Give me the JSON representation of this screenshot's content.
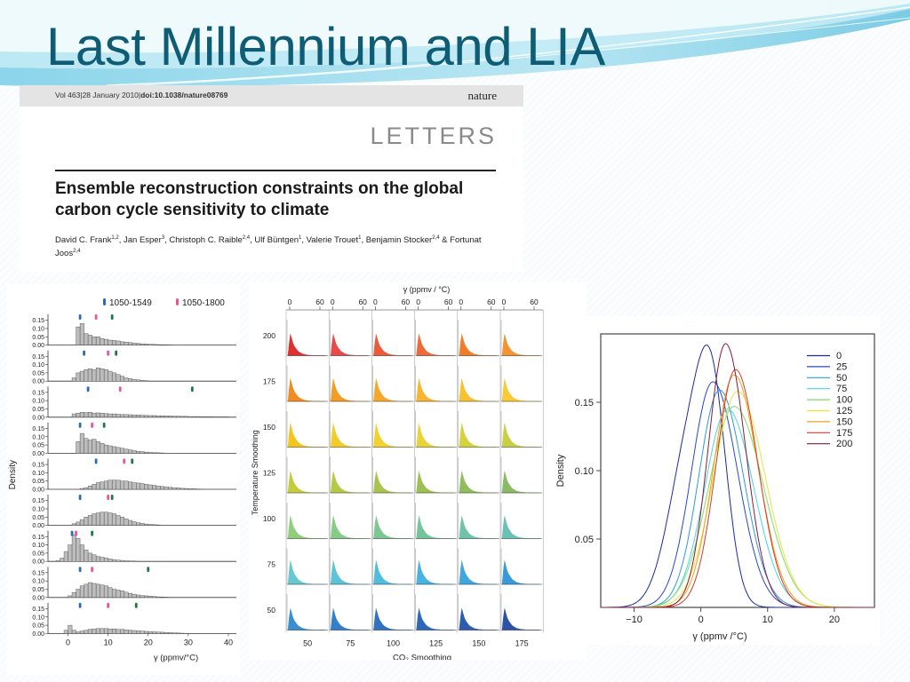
{
  "slide": {
    "title": "Last Millennium and LIA"
  },
  "paper": {
    "journal_info_prefix": "Vol 463|28 January 2010|",
    "journal_info_doi": "doi:10.1038/nature08769",
    "journal": "nature",
    "section": "LETTERS",
    "title": "Ensemble reconstruction constraints on the global carbon cycle sensitivity to climate",
    "authors": [
      {
        "name": "David C. Frank",
        "sup": "1,2"
      },
      {
        "name": "Jan Esper",
        "sup": "3"
      },
      {
        "name": "Christoph C. Raible",
        "sup": "2,4"
      },
      {
        "name": "Ulf Büntgen",
        "sup": "1"
      },
      {
        "name": "Valerie Trouet",
        "sup": "1"
      },
      {
        "name": "Benjamin Stocker",
        "sup": "2,4"
      },
      {
        "name": "Fortunat Joos",
        "sup": "2,4"
      }
    ]
  },
  "colors": {
    "title": "#0f5d75",
    "histogram_fill": "#bdbdbd",
    "marker_1050_1549": "#2b6cb0",
    "marker_1050_1800": "#e8559a",
    "marker_third": "#1b7a3e"
  },
  "chart_data": [
    {
      "type": "bar",
      "panel": "histograms",
      "legend": [
        "1050-1549",
        "1050-1800"
      ],
      "ylabel": "Density",
      "xlabel": "γ (ppmv/°C)",
      "xlim": [
        -5,
        42
      ],
      "xticks": [
        "0",
        "10",
        "20",
        "30",
        "40"
      ],
      "yticks": [
        "0.15",
        "0.10",
        "0.05",
        "0.00"
      ],
      "bin_width": 1,
      "rows": [
        {
          "bins_start": 2,
          "values": [
            0.11,
            0.13,
            0.07,
            0.06,
            0.05,
            0.05,
            0.04,
            0.035,
            0.03,
            0.028,
            0.025,
            0.02,
            0.018,
            0.015,
            0.012,
            0.01,
            0.008,
            0.006,
            0.005,
            0.004,
            0.003,
            0.002,
            0.002,
            0.001
          ],
          "markers": [
            3,
            7,
            11
          ]
        },
        {
          "bins_start": 1,
          "values": [
            0.02,
            0.05,
            0.06,
            0.07,
            0.075,
            0.07,
            0.08,
            0.075,
            0.07,
            0.06,
            0.05,
            0.04,
            0.03,
            0.02,
            0.015,
            0.01,
            0.008,
            0.005,
            0.003
          ],
          "markers": [
            4,
            10,
            12
          ]
        },
        {
          "bins_start": 1,
          "values": [
            0.02,
            0.025,
            0.03,
            0.028,
            0.03,
            0.025,
            0.026,
            0.024,
            0.022,
            0.02,
            0.02,
            0.018,
            0.016,
            0.016,
            0.015,
            0.014,
            0.013,
            0.012,
            0.011,
            0.01,
            0.01,
            0.009,
            0.008,
            0.008,
            0.007,
            0.006,
            0.006,
            0.005,
            0.005,
            0.004,
            0.004,
            0.004,
            0.003,
            0.003,
            0.003,
            0.002,
            0.002,
            0.002,
            0.002,
            0.001
          ],
          "markers": [
            5,
            13,
            31
          ]
        },
        {
          "bins_start": 2,
          "values": [
            0.07,
            0.12,
            0.09,
            0.08,
            0.085,
            0.07,
            0.06,
            0.05,
            0.045,
            0.04,
            0.035,
            0.03,
            0.025,
            0.02,
            0.016,
            0.012,
            0.01,
            0.007,
            0.005,
            0.004,
            0.003,
            0.002
          ],
          "markers": [
            3,
            6,
            9
          ]
        },
        {
          "bins_start": 3,
          "values": [
            0.005,
            0.01,
            0.02,
            0.03,
            0.04,
            0.045,
            0.05,
            0.055,
            0.055,
            0.055,
            0.05,
            0.05,
            0.045,
            0.04,
            0.038,
            0.035,
            0.03,
            0.027,
            0.024,
            0.02,
            0.017,
            0.014,
            0.012,
            0.01,
            0.008,
            0.006,
            0.005,
            0.004,
            0.003,
            0.002
          ],
          "markers": [
            7,
            14,
            16
          ]
        },
        {
          "bins_start": 1,
          "values": [
            0.01,
            0.02,
            0.035,
            0.05,
            0.06,
            0.07,
            0.075,
            0.08,
            0.08,
            0.075,
            0.07,
            0.06,
            0.05,
            0.04,
            0.03,
            0.022,
            0.016,
            0.012,
            0.008,
            0.006,
            0.004,
            0.003
          ],
          "markers": [
            3,
            10,
            11
          ]
        },
        {
          "bins_start": -3,
          "values": [
            0.005,
            0.02,
            0.06,
            0.1,
            0.16,
            0.14,
            0.1,
            0.07,
            0.05,
            0.04,
            0.03,
            0.025,
            0.02,
            0.015,
            0.01,
            0.008,
            0.006,
            0.004,
            0.003,
            0.002
          ],
          "markers": [
            1,
            2,
            6
          ]
        },
        {
          "bins_start": 0,
          "values": [
            0.01,
            0.03,
            0.05,
            0.07,
            0.08,
            0.09,
            0.085,
            0.08,
            0.075,
            0.07,
            0.06,
            0.05,
            0.045,
            0.04,
            0.032,
            0.025,
            0.02,
            0.015,
            0.012,
            0.01,
            0.008,
            0.006,
            0.004,
            0.003,
            0.002
          ],
          "markers": [
            3,
            6,
            20
          ]
        },
        {
          "bins_start": -1,
          "values": [
            0.02,
            0.05,
            0.02,
            0.01,
            0.015,
            0.02,
            0.025,
            0.028,
            0.03,
            0.03,
            0.03,
            0.028,
            0.028,
            0.025,
            0.025,
            0.022,
            0.02,
            0.018,
            0.016,
            0.015,
            0.013,
            0.012,
            0.01,
            0.009,
            0.008,
            0.006,
            0.005,
            0.004,
            0.003,
            0.002
          ],
          "markers": [
            3,
            10,
            17
          ]
        }
      ]
    },
    {
      "type": "area",
      "panel": "grid-histograms",
      "top_xlabel": "γ (ppmv / °C)",
      "top_xticks": [
        "0",
        "60"
      ],
      "xlabel": "CO₂ Smoothing",
      "ylabel": "Temperature Smoothing",
      "columns": [
        "50",
        "75",
        "100",
        "125",
        "150",
        "175"
      ],
      "rows": [
        "200",
        "175",
        "150",
        "125",
        "100",
        "75",
        "50"
      ],
      "row_colors": {
        "200": [
          "#e03131",
          "#e84a4a",
          "#ec5a3a",
          "#ef6a3a",
          "#f07d2a",
          "#f29431"
        ],
        "175": [
          "#f08c22",
          "#f39c26",
          "#f4a82c",
          "#f6b630",
          "#f7c232",
          "#f8cb36"
        ],
        "150": [
          "#f3c521",
          "#f4cc2a",
          "#f2d232",
          "#e8d43a",
          "#d6d23e",
          "#c8cf42"
        ],
        "125": [
          "#c4cc3c",
          "#b7c844",
          "#a8c44c",
          "#9cc054",
          "#92bd5c",
          "#88bb66"
        ],
        "100": [
          "#8fcf7c",
          "#86cb86",
          "#7cc890",
          "#74c69a",
          "#6ec3a8",
          "#69c0b6"
        ],
        "75": [
          "#68c8d2",
          "#5cc2d8",
          "#52bcdc",
          "#4ab2de",
          "#40a6dc",
          "#3a9ad8"
        ],
        "50": [
          "#3a8fd0",
          "#357fca",
          "#3172c0",
          "#2e67b8",
          "#2c5cae",
          "#2a52a6"
        ]
      }
    },
    {
      "type": "line",
      "panel": "density-curves",
      "xlabel": "γ (ppmv /°C)",
      "ylabel": "Density",
      "xlim": [
        -15,
        26
      ],
      "ylim": [
        0,
        0.2
      ],
      "xticks": [
        "−10",
        "0",
        "10",
        "20"
      ],
      "yticks": [
        "0.05",
        "0.10",
        "0.15"
      ],
      "series": [
        {
          "name": "0",
          "color": "#1c2a9a",
          "mode": "bimodal",
          "mu": 0.5,
          "sigma": 4.2,
          "peak": 0.126
        },
        {
          "name": "25",
          "color": "#2747c8",
          "mode": "single",
          "mu": 1.8,
          "sigma": 3.2,
          "peak": 0.165
        },
        {
          "name": "50",
          "color": "#2b9ae0",
          "mode": "single",
          "mu": 2.8,
          "sigma": 3.1,
          "peak": 0.159
        },
        {
          "name": "75",
          "color": "#45d6e4",
          "mode": "single",
          "mu": 4.0,
          "sigma": 3.4,
          "peak": 0.145
        },
        {
          "name": "100",
          "color": "#7fdc6a",
          "mode": "single",
          "mu": 5.0,
          "sigma": 3.8,
          "peak": 0.147
        },
        {
          "name": "125",
          "color": "#e5e63a",
          "mode": "single",
          "mu": 5.5,
          "sigma": 3.6,
          "peak": 0.158
        },
        {
          "name": "150",
          "color": "#f0a023",
          "mode": "single",
          "mu": 5.0,
          "sigma": 3.1,
          "peak": 0.17
        },
        {
          "name": "175",
          "color": "#d83a2a",
          "mode": "single",
          "mu": 5.2,
          "sigma": 2.9,
          "peak": 0.174
        },
        {
          "name": "200",
          "color": "#8a1a3a",
          "mode": "single",
          "mu": 3.7,
          "sigma": 2.6,
          "peak": 0.193
        }
      ]
    }
  ]
}
